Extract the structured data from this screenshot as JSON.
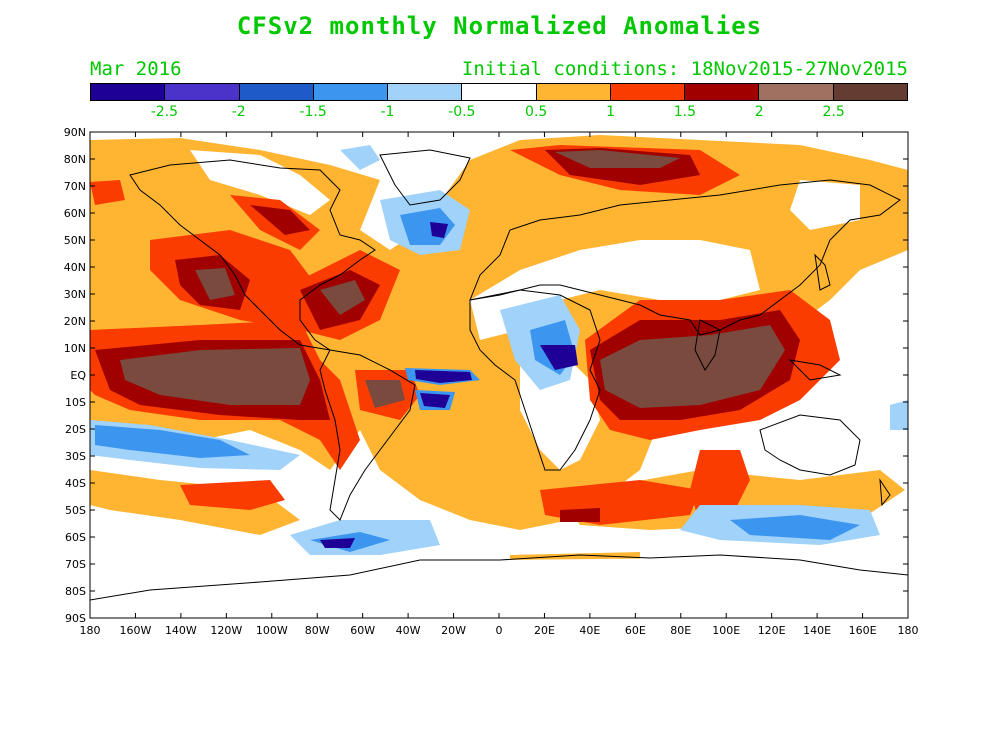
{
  "title": "CFSv2 monthly Normalized Anomalies",
  "valid_month": "Mar 2016",
  "initial_conditions": "Initial conditions: 18Nov2015-27Nov2015",
  "colorbar": {
    "colors": [
      "#1e0096",
      "#4b32c8",
      "#1e5ac8",
      "#3c96f0",
      "#a0d2fa",
      "#ffffff",
      "#ffb432",
      "#fa3c00",
      "#a00000",
      "#a07060",
      "#643c32"
    ],
    "labels": [
      "-2.5",
      "-2",
      "-1.5",
      "-1",
      "-0.5",
      "0.5",
      "1",
      "1.5",
      "2",
      "2.5"
    ]
  },
  "map": {
    "lat_labels": [
      "90N",
      "80N",
      "70N",
      "60N",
      "50N",
      "40N",
      "30N",
      "20N",
      "10N",
      "EQ",
      "10S",
      "20S",
      "30S",
      "40S",
      "50S",
      "60S",
      "70S",
      "80S",
      "90S"
    ],
    "lon_labels": [
      "180",
      "160W",
      "140W",
      "120W",
      "100W",
      "80W",
      "60W",
      "40W",
      "20W",
      "0",
      "20E",
      "40E",
      "60E",
      "80E",
      "100E",
      "120E",
      "140E",
      "160E",
      "180"
    ]
  }
}
